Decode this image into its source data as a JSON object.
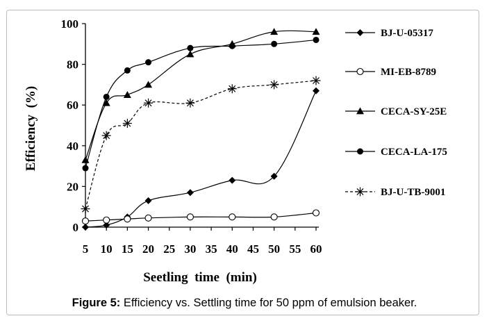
{
  "caption": {
    "label": "Figure 5:",
    "text": " Efficiency vs. Settling time for 50 ppm of emulsion beaker."
  },
  "chart_data": {
    "type": "line",
    "title": "",
    "xlabel": "Seetling  time  (min)",
    "ylabel": "Efficiency  (%)",
    "xlim": [
      5,
      60
    ],
    "ylim": [
      0,
      100
    ],
    "xticks": [
      5,
      10,
      15,
      20,
      25,
      30,
      35,
      40,
      45,
      50,
      55,
      60
    ],
    "yticks": [
      0,
      20,
      40,
      60,
      80,
      100
    ],
    "grid": false,
    "legend_position": "right",
    "x": [
      5,
      10,
      20,
      30,
      40,
      50,
      60
    ],
    "series": [
      {
        "name": "BJ-U-05317",
        "marker": "diamond",
        "line": "solid",
        "points": [
          [
            5,
            0
          ],
          [
            10,
            1
          ],
          [
            15,
            5
          ],
          [
            20,
            13
          ],
          [
            30,
            17
          ],
          [
            40,
            23
          ],
          [
            50,
            25
          ],
          [
            60,
            67
          ]
        ]
      },
      {
        "name": "MI-EB-8789",
        "marker": "open-circle",
        "line": "solid",
        "points": [
          [
            5,
            3
          ],
          [
            10,
            3.5
          ],
          [
            15,
            4
          ],
          [
            20,
            4.5
          ],
          [
            30,
            5
          ],
          [
            40,
            5
          ],
          [
            50,
            5
          ],
          [
            60,
            7
          ]
        ]
      },
      {
        "name": "CECA-SY-25E",
        "marker": "triangle",
        "line": "solid",
        "points": [
          [
            5,
            33
          ],
          [
            10,
            61
          ],
          [
            15,
            65
          ],
          [
            20,
            70
          ],
          [
            30,
            85
          ],
          [
            40,
            90
          ],
          [
            50,
            96
          ],
          [
            60,
            96
          ]
        ]
      },
      {
        "name": "CECA-LA-175",
        "marker": "filled-circle",
        "line": "solid",
        "points": [
          [
            5,
            29
          ],
          [
            10,
            64
          ],
          [
            15,
            77
          ],
          [
            20,
            81
          ],
          [
            30,
            88
          ],
          [
            40,
            89
          ],
          [
            50,
            90
          ],
          [
            60,
            92
          ]
        ]
      },
      {
        "name": "BJ-U-TB-9001",
        "marker": "asterisk",
        "line": "dashed",
        "points": [
          [
            5,
            9
          ],
          [
            10,
            45
          ],
          [
            15,
            51
          ],
          [
            20,
            61
          ],
          [
            30,
            61
          ],
          [
            40,
            68
          ],
          [
            50,
            70
          ],
          [
            60,
            72
          ]
        ]
      }
    ]
  }
}
